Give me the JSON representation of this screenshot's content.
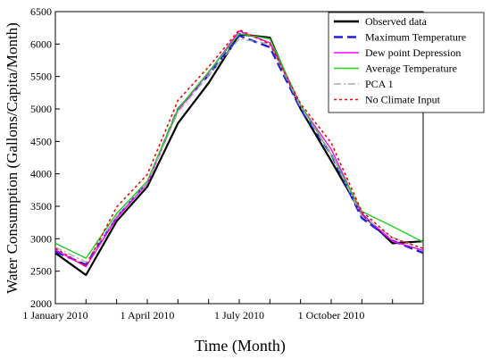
{
  "chart_data": {
    "type": "line",
    "xlabel": "Time (Month)",
    "ylabel": "Water Consumption (Gallons/Capita/Month)",
    "ylim": [
      2000,
      6500
    ],
    "yticks": [
      2000,
      2500,
      3000,
      3500,
      4000,
      4500,
      5000,
      5500,
      6000,
      6500
    ],
    "x": [
      1,
      2,
      3,
      4,
      5,
      6,
      7,
      8,
      9,
      10,
      11,
      12,
      13
    ],
    "xlim": [
      1,
      13
    ],
    "xticks": [
      {
        "x": 1,
        "label": "1 January 2010"
      },
      {
        "x": 4,
        "label": "1 April 2010"
      },
      {
        "x": 7,
        "label": "1 July 2010"
      },
      {
        "x": 10,
        "label": "1 October 2010"
      }
    ],
    "legend_position": "top-right",
    "series": [
      {
        "name": "Observed data",
        "color": "#000000",
        "style": "solid",
        "values": [
          2780,
          2440,
          3270,
          3800,
          4780,
          5400,
          6150,
          6100,
          5000,
          4200,
          3380,
          2930,
          2960
        ]
      },
      {
        "name": "Maximum Temperature",
        "color": "#1f1fdd",
        "style": "dash",
        "values": [
          2800,
          2600,
          3330,
          3860,
          5000,
          5520,
          6130,
          5950,
          5000,
          4300,
          3320,
          2970,
          2780
        ]
      },
      {
        "name": "Dew point Depression",
        "color": "#ff00ff",
        "style": "solid",
        "values": [
          2830,
          2570,
          3320,
          3850,
          4980,
          5560,
          6200,
          6020,
          5050,
          4380,
          3380,
          2960,
          2820
        ]
      },
      {
        "name": "Average Temperature",
        "color": "#22cc22",
        "style": "solid",
        "values": [
          2930,
          2700,
          3390,
          3890,
          5000,
          5570,
          6160,
          6080,
          5060,
          4300,
          3420,
          3190,
          2950
        ]
      },
      {
        "name": "PCA 1",
        "color": "#aaaaaa",
        "style": "dashdot",
        "values": [
          2870,
          2640,
          3350,
          3860,
          4950,
          5520,
          6080,
          6000,
          5030,
          4300,
          3350,
          3020,
          2850
        ]
      },
      {
        "name": "No Climate Input",
        "color": "#dd1111",
        "style": "dot",
        "values": [
          2850,
          2580,
          3490,
          3990,
          5130,
          5650,
          6220,
          6000,
          5080,
          4480,
          3420,
          3010,
          2850
        ]
      }
    ]
  }
}
